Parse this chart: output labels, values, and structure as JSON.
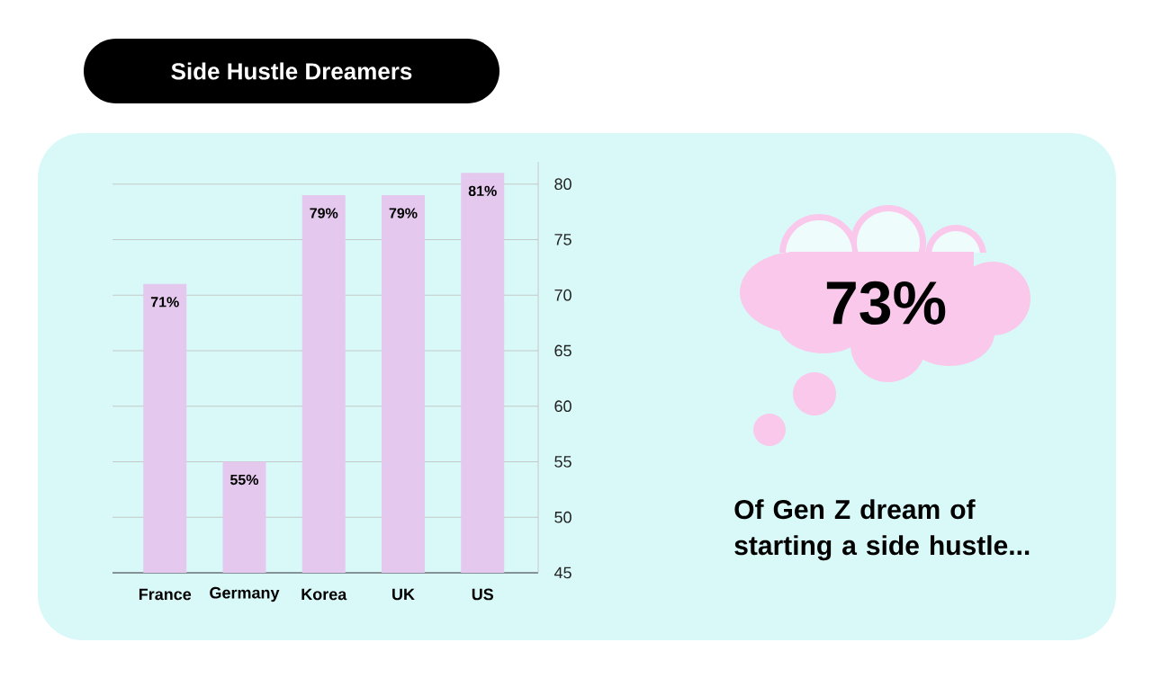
{
  "chart_data": {
    "type": "bar",
    "title": "Side Hustle Dreamers",
    "categories": [
      "France",
      "Germany",
      "Korea",
      "UK",
      "US"
    ],
    "values": [
      71,
      55,
      79,
      79,
      81
    ],
    "value_labels": [
      "71%",
      "55%",
      "79%",
      "79%",
      "81%"
    ],
    "color": "#e4c8ee",
    "ylim": [
      45,
      82
    ],
    "yticks": [
      45,
      50,
      55,
      60,
      65,
      70,
      75,
      80
    ],
    "grid": "y",
    "annotations": [
      "73%",
      "Of Gen Z dream of starting a side hustle..."
    ]
  }
}
